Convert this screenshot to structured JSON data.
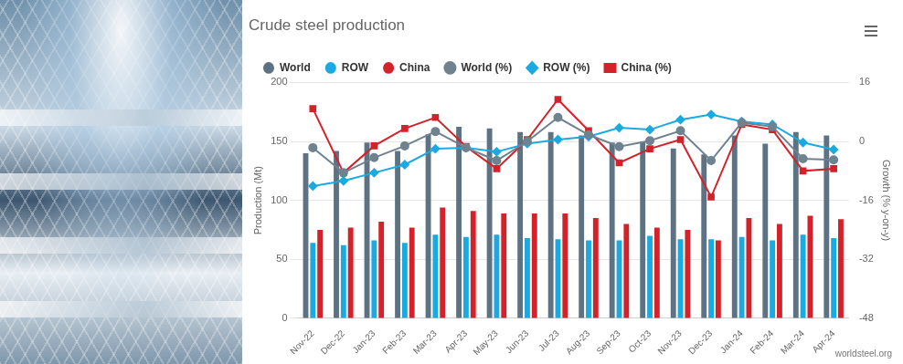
{
  "chart_data": {
    "type": "bar",
    "title": "Crude steel production",
    "source": "worldsteel.org",
    "y_label": "Production (Mt)",
    "y2_label": "Growth (% y-on-y)",
    "categories": [
      "Nov-22",
      "Dec-22",
      "Jan-23",
      "Feb-23",
      "Mar-23",
      "Apr-23",
      "May-23",
      "Jun-23",
      "Jul-23",
      "Aug-23",
      "Sep-23",
      "Oct-23",
      "Nov-23",
      "Dec-23",
      "Jan-24",
      "Feb-24",
      "Mar-24",
      "Apr-24"
    ],
    "ylim": [
      0,
      200
    ],
    "yticks": [
      0,
      50,
      100,
      150,
      200
    ],
    "y2lim": [
      -48,
      16
    ],
    "y2ticks": [
      -48,
      -32,
      -16,
      0,
      16
    ],
    "grid": true,
    "legend": "top",
    "series": [
      {
        "name": "World",
        "type": "bar",
        "color": "#5d7282",
        "values": [
          140,
          142,
          149,
          142,
          156,
          162.5,
          161,
          158,
          158,
          155,
          149,
          150,
          144,
          139,
          155,
          148,
          158,
          155
        ]
      },
      {
        "name": "ROW",
        "type": "bar",
        "color": "#1ba9e1",
        "values": [
          64,
          62,
          66,
          64,
          71,
          69,
          71,
          68,
          67,
          66,
          66,
          70,
          67,
          67,
          69,
          66,
          71,
          68
        ]
      },
      {
        "name": "China",
        "type": "bar",
        "color": "#d3222a",
        "values": [
          75,
          77,
          82,
          77,
          94,
          91,
          89,
          89,
          89,
          85,
          80,
          77,
          75,
          66,
          85,
          80,
          87,
          84
        ]
      },
      {
        "name": "World (%)",
        "type": "line",
        "axis": "y2",
        "color": "#6f8290",
        "marker": "circle",
        "values": [
          -1.7,
          -8.5,
          -4.4,
          -1.2,
          2.7,
          -1.7,
          -5.2,
          0,
          6.5,
          1.8,
          -1.4,
          0.2,
          2.9,
          -5.2,
          5.1,
          4.0,
          -4.7,
          -5.0
        ]
      },
      {
        "name": "ROW (%)",
        "type": "line",
        "axis": "y2",
        "color": "#1ba9e1",
        "marker": "diamond",
        "values": [
          -12.1,
          -10.7,
          -8.5,
          -6.3,
          -2.0,
          -1.7,
          -2.8,
          -0.6,
          0.5,
          1.3,
          3.7,
          3.2,
          5.9,
          7.3,
          5.4,
          4.6,
          -0.3,
          -2.2
        ]
      },
      {
        "name": "China (%)",
        "type": "line",
        "axis": "y2",
        "color": "#d3222a",
        "marker": "square",
        "values": [
          8.9,
          -8.5,
          -1.2,
          3.5,
          6.5,
          -1.4,
          -7.4,
          0.5,
          11.4,
          2.9,
          -5.8,
          -2.0,
          0.5,
          -15.1,
          4.6,
          3.2,
          -8.0,
          -7.4
        ]
      }
    ]
  }
}
